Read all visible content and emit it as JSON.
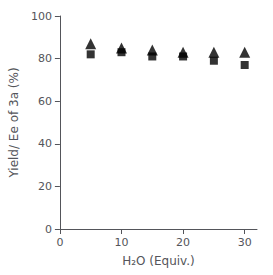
{
  "chart_data": {
    "type": "scatter",
    "x": [
      5,
      10,
      15,
      20,
      25,
      30
    ],
    "series": [
      {
        "values": [
          82,
          83,
          81,
          81,
          79,
          77
        ],
        "marker": "square",
        "color": "black"
      },
      {
        "values": [
          87,
          85,
          84,
          83,
          83,
          83
        ],
        "marker": "triangle",
        "color": "black"
      }
    ],
    "xlabel": "H₂O (Equiv.)",
    "ylabel": "Yield/ Ee of 3a (%)",
    "xlim": [
      0,
      32
    ],
    "ylim": [
      0,
      100
    ],
    "xticks": [
      0,
      10,
      20,
      30
    ],
    "yticks": [
      0,
      20,
      40,
      60,
      80,
      100
    ],
    "grid": false
  }
}
